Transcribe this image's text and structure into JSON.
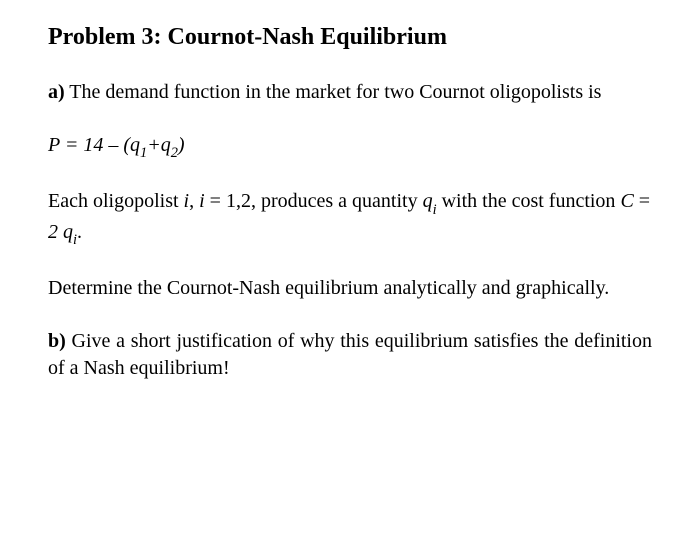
{
  "title": "Problem 3: Cournot-Nash Equilibrium",
  "partA": {
    "label": "a)",
    "intro_pre": " The demand function in the market for two Cournot oligopolists is",
    "equation": {
      "lead": "P = 14 – (q",
      "sub1": "1",
      "plus": "+q",
      "sub2": "2",
      "close": ")"
    },
    "sentence2": {
      "s1": "Each oligopolist ",
      "i": "i",
      "s2": ", ",
      "i2": "i",
      "s3": " = 1,2,  produces a quantity ",
      "q": "q",
      "qi": "i",
      "s4": " with the cost function ",
      "C": "C",
      "s5": " = ",
      "two": "2 q",
      "ci": "i",
      "dot": "."
    },
    "sentence3": "Determine the Cournot-Nash equilibrium analytically and graphically."
  },
  "partB": {
    "label": "b)",
    "text": " Give a short justification of why this equilibrium satisfies the definition of a Nash equilibrium!"
  },
  "colors": {
    "text": "#000000",
    "background": "#ffffff"
  },
  "typography": {
    "title_fontsize": 24,
    "body_fontsize": 20,
    "font_family": "Times New Roman"
  }
}
